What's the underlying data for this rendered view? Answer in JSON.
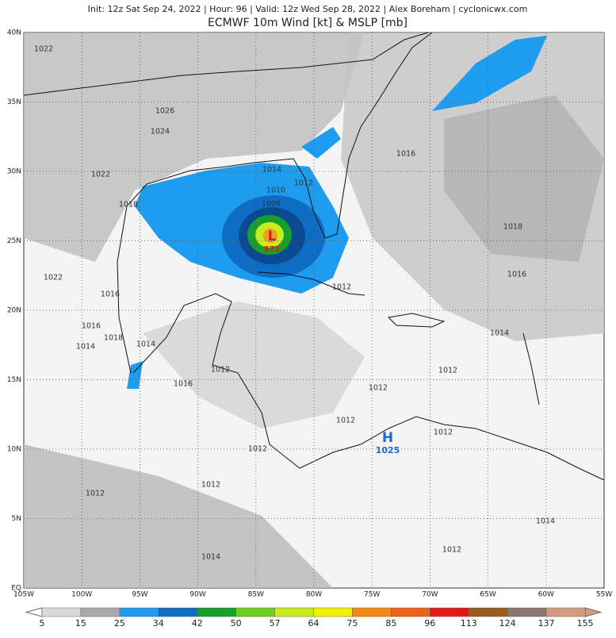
{
  "header": {
    "info": "Init: 12z Sat Sep 24, 2022 | Hour: 96 | Valid: 12z Wed Sep 28, 2022 | Alex Boreham | cyclonicwx.com",
    "title": "ECMWF 10m Wind [kt] & MSLP [mb]"
  },
  "lat_labels": [
    "40N",
    "35N",
    "30N",
    "25N",
    "20N",
    "15N",
    "10N",
    "5N",
    "EQ"
  ],
  "lon_labels": [
    "105W",
    "100W",
    "95W",
    "90W",
    "85W",
    "80W",
    "75W",
    "70W",
    "65W",
    "60W",
    "55W"
  ],
  "pressure_labels": [
    "1022",
    "1026",
    "1024",
    "1022",
    "1018",
    "1014",
    "1010",
    "1012",
    "1006",
    "1016",
    "1018",
    "1016",
    "1022",
    "1016",
    "1016",
    "1018",
    "1014",
    "1014",
    "1012",
    "1014",
    "1012",
    "1012",
    "1016",
    "1012",
    "1012",
    "1012",
    "1012",
    "1012",
    "1012",
    "1014",
    "1012",
    "1014"
  ],
  "low": {
    "symbol": "L",
    "pressure": "971"
  },
  "high": {
    "symbol": "H",
    "pressure": "1025"
  },
  "colorbar": {
    "values": [
      5,
      15,
      25,
      34,
      42,
      50,
      57,
      64,
      75,
      85,
      96,
      113,
      124,
      137,
      155
    ],
    "colors": [
      "#d9d9d9",
      "#a9a9a9",
      "#1e9cf0",
      "#0e6cc4",
      "#16a02a",
      "#6fcf1c",
      "#c8ec1c",
      "#f0f000",
      "#f08a10",
      "#f06018",
      "#e01818",
      "#9a5a1c",
      "#8c7470",
      "#d49a80"
    ]
  }
}
